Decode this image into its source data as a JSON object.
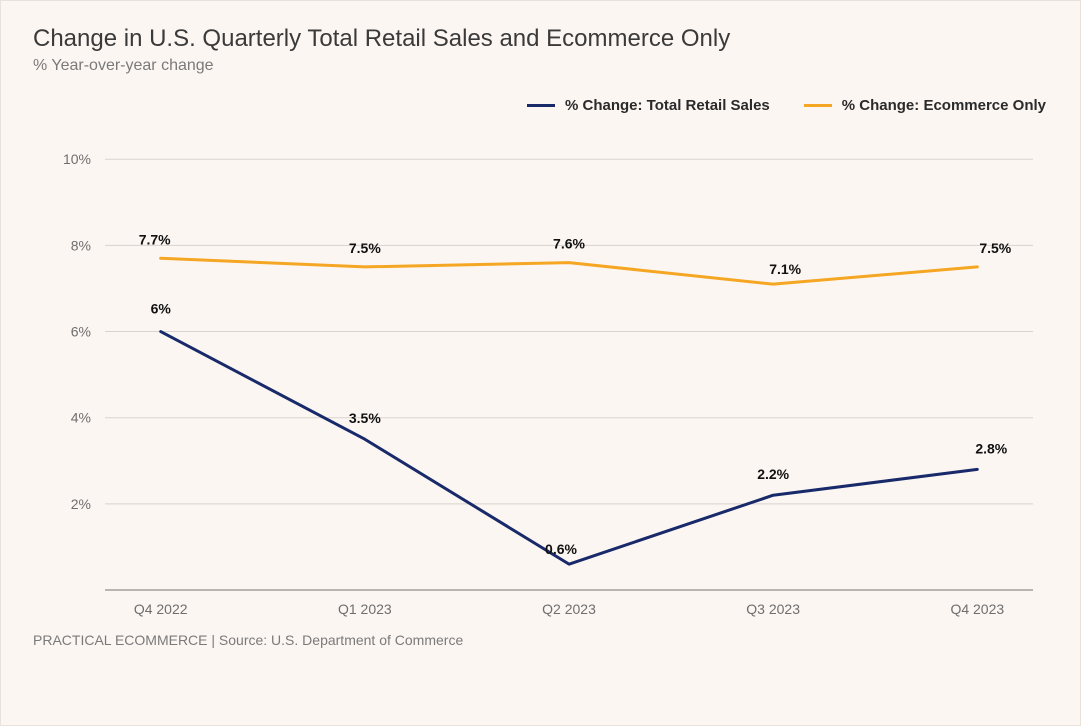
{
  "title": "Change in U.S. Quarterly Total Retail Sales and Ecommerce Only",
  "subtitle": "% Year-over-year change",
  "source": "PRACTICAL ECOMMERCE | Source: U.S. Department of Commerce",
  "chart": {
    "type": "line",
    "background_color": "#fcf6f3",
    "grid_color": "#d9d2cd",
    "axis_color": "#7a736e",
    "text_color": "#6e6e6e",
    "title_fontsize": 24,
    "subtitle_fontsize": 16,
    "label_fontsize": 14,
    "line_width": 3,
    "categories": [
      "Q4 2022",
      "Q1 2023",
      "Q2 2023",
      "Q3 2023",
      "Q4 2023"
    ],
    "y": {
      "min": 0,
      "max": 10.4,
      "ticks": [
        2,
        4,
        6,
        8,
        10
      ],
      "tick_labels": [
        "2%",
        "4%",
        "6%",
        "8%",
        "10%"
      ]
    },
    "series": [
      {
        "name": "% Change: Total Retail Sales",
        "color": "#192a6b",
        "values": [
          6.0,
          3.5,
          0.6,
          2.2,
          2.8
        ],
        "labels": [
          "6%",
          "3.5%",
          "0.6%",
          "2.2%",
          "2.8%"
        ],
        "label_dx": [
          0,
          0,
          -8,
          0,
          14
        ],
        "label_dy": [
          -18,
          -16,
          -10,
          -16,
          -16
        ]
      },
      {
        "name": "% Change: Ecommerce Only",
        "color": "#f5a623",
        "values": [
          7.7,
          7.5,
          7.6,
          7.1,
          7.5
        ],
        "labels": [
          "7.7%",
          "7.5%",
          "7.6%",
          "7.1%",
          "7.5%"
        ],
        "label_dx": [
          -6,
          0,
          0,
          12,
          18
        ],
        "label_dy": [
          -14,
          -14,
          -14,
          -10,
          -14
        ]
      }
    ]
  },
  "legend": {
    "items": [
      {
        "label": "% Change: Total Retail Sales",
        "color": "#192a6b"
      },
      {
        "label": "% Change: Ecommerce Only",
        "color": "#f5a623"
      }
    ]
  }
}
